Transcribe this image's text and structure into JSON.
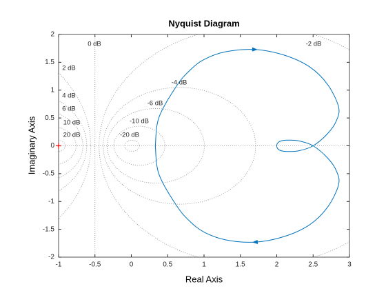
{
  "chart_data": {
    "type": "nyquist",
    "title": "Nyquist Diagram",
    "xlabel": "Real Axis",
    "ylabel": "Imaginary Axis",
    "x": [
      0.33,
      0.38,
      0.62,
      0.8,
      1.0,
      1.3,
      1.7,
      2.1,
      2.45,
      2.7,
      2.85,
      2.82,
      2.7,
      2.5,
      2.3,
      2.12,
      2.03,
      2.0,
      2.03,
      2.12,
      2.3,
      2.5,
      2.7,
      2.82,
      2.85,
      2.7,
      2.45,
      2.1,
      1.7,
      1.3,
      1.0,
      0.8,
      0.62,
      0.38,
      0.33
    ],
    "values": [
      0,
      0.51,
      1.07,
      1.35,
      1.55,
      1.69,
      1.73,
      1.63,
      1.42,
      1.1,
      0.7,
      0.45,
      0.22,
      0,
      -0.09,
      -0.1,
      -0.07,
      0,
      0.07,
      0.1,
      0.09,
      0,
      -0.22,
      -0.45,
      -0.7,
      -1.1,
      -1.42,
      -1.63,
      -1.73,
      -1.69,
      -1.55,
      -1.35,
      -1.07,
      -0.51,
      0
    ],
    "color": "#0072bd",
    "arrows_at": [
      6,
      28
    ],
    "critical_point": [
      -1,
      0
    ],
    "xlim": [
      -1,
      3
    ],
    "ylim": [
      -2,
      2
    ],
    "xticks": [
      -1,
      -0.5,
      0,
      0.5,
      1,
      1.5,
      2,
      2.5,
      3
    ],
    "yticks": [
      -2,
      -1.5,
      -1,
      -0.5,
      0,
      0.5,
      1,
      1.5,
      2
    ],
    "grid_db": [
      {
        "value": 0,
        "label": "0 dB"
      },
      {
        "value": 2,
        "label": "2 dB"
      },
      {
        "value": 4,
        "label": "4 dB"
      },
      {
        "value": 6,
        "label": "6 dB"
      },
      {
        "value": 10,
        "label": "10 dB"
      },
      {
        "value": 20,
        "label": "20 dB"
      },
      {
        "value": -2,
        "label": "-2 dB"
      },
      {
        "value": -4,
        "label": "-4 dB"
      },
      {
        "value": -6,
        "label": "-6 dB"
      },
      {
        "value": -10,
        "label": "-10 dB"
      },
      {
        "value": -20,
        "label": "-20 dB"
      }
    ]
  }
}
